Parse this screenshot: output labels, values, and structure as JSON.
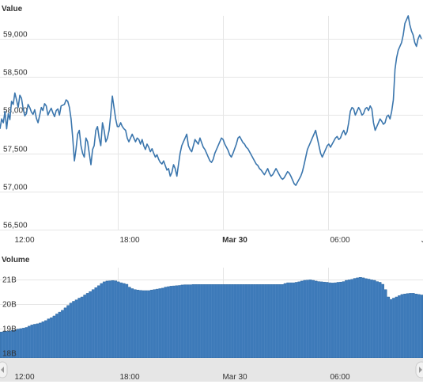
{
  "colors": {
    "line": "#3b76ad",
    "bar": "#3d7ab9",
    "bar_edge": "#2f679e",
    "grid": "#e6e6e6",
    "navigator": "#e6e6e6"
  },
  "icons": {
    "navigator_left": "chevron-left-icon",
    "navigator_right": "chevron-right-icon"
  },
  "chart_data": [
    {
      "type": "line",
      "ylabel": "Value",
      "ylim": [
        56500,
        59300
      ],
      "y_ticks": [
        "59,000",
        "58,500",
        "58,000",
        "57,500",
        "57,000",
        "56,500"
      ],
      "x_ticks": [
        "12:00",
        "18:00",
        "Mar 30",
        "06:00",
        "J"
      ],
      "grid": true,
      "series": [
        {
          "values": [
            57820,
            57950,
            57900,
            58050,
            57820,
            58020,
            57940,
            58180,
            58140,
            58290,
            58200,
            58100,
            58260,
            58220,
            58080,
            57990,
            58020,
            58140,
            58100,
            58040,
            58010,
            58070,
            57960,
            57900,
            58000,
            58100,
            58060,
            58150,
            58120,
            58000,
            58050,
            58090,
            58030,
            57980,
            58060,
            58080,
            58000,
            58120,
            58130,
            58140,
            58200,
            58180,
            58100,
            57950,
            57700,
            57400,
            57550,
            57750,
            57800,
            57600,
            57500,
            57450,
            57700,
            57650,
            57500,
            57350,
            57550,
            57600,
            57800,
            57850,
            57700,
            57600,
            57900,
            57800,
            57650,
            57700,
            57800,
            58000,
            58250,
            58100,
            57950,
            57850,
            57850,
            57900,
            57850,
            57820,
            57800,
            57700,
            57650,
            57700,
            57750,
            57700,
            57650,
            57700,
            57680,
            57620,
            57680,
            57600,
            57550,
            57620,
            57580,
            57520,
            57560,
            57500,
            57450,
            57480,
            57420,
            57380,
            57360,
            57400,
            57340,
            57280,
            57300,
            57200,
            57250,
            57350,
            57300,
            57200,
            57350,
            57500,
            57600,
            57650,
            57700,
            57750,
            57600,
            57550,
            57520,
            57600,
            57680,
            57650,
            57620,
            57700,
            57640,
            57580,
            57550,
            57500,
            57450,
            57400,
            57380,
            57420,
            57500,
            57550,
            57600,
            57650,
            57700,
            57680,
            57620,
            57580,
            57540,
            57480,
            57450,
            57500,
            57560,
            57620,
            57700,
            57720,
            57680,
            57640,
            57620,
            57580,
            57560,
            57520,
            57480,
            57440,
            57400,
            57360,
            57340,
            57300,
            57280,
            57250,
            57220,
            57260,
            57300,
            57240,
            57200,
            57220,
            57260,
            57300,
            57260,
            57220,
            57180,
            57160,
            57180,
            57220,
            57260,
            57240,
            57200,
            57150,
            57100,
            57080,
            57120,
            57160,
            57200,
            57260,
            57350,
            57450,
            57550,
            57600,
            57650,
            57700,
            57750,
            57800,
            57700,
            57600,
            57500,
            57450,
            57500,
            57550,
            57600,
            57620,
            57580,
            57620,
            57660,
            57700,
            57720,
            57680,
            57700,
            57760,
            57800,
            57740,
            57780,
            57900,
            58050,
            58100,
            58080,
            58000,
            58050,
            58100,
            58060,
            58000,
            58020,
            58080,
            58100,
            58060,
            58120,
            58080,
            57900,
            57800,
            57850,
            57900,
            57950,
            57920,
            57880,
            57900,
            57980,
            58000,
            57950,
            58050,
            58200,
            58600,
            58750,
            58850,
            58900,
            58950,
            59050,
            59200,
            59250,
            59300,
            59180,
            59100,
            59050,
            58950,
            58900,
            59000,
            59050,
            59000
          ]
        }
      ]
    },
    {
      "type": "area",
      "ylabel": "Volume",
      "ylim": [
        17800000000,
        21500000000
      ],
      "y_ticks": [
        "21B",
        "20B",
        "19B",
        "18B"
      ],
      "x_ticks": [
        "12:00",
        "18:00",
        "Mar 30",
        "06:00"
      ],
      "grid": true,
      "series": [
        {
          "values": [
            18860000000,
            18880000000,
            18890000000,
            18900000000,
            18930000000,
            18950000000,
            18980000000,
            19000000000,
            19020000000,
            19050000000,
            19100000000,
            19150000000,
            19180000000,
            19200000000,
            19230000000,
            19280000000,
            19330000000,
            19400000000,
            19450000000,
            19520000000,
            19600000000,
            19680000000,
            19750000000,
            19850000000,
            19950000000,
            20050000000,
            20120000000,
            20180000000,
            20250000000,
            20300000000,
            20380000000,
            20450000000,
            20520000000,
            20600000000,
            20680000000,
            20760000000,
            20850000000,
            20920000000,
            20950000000,
            20960000000,
            20970000000,
            20960000000,
            20920000000,
            20880000000,
            20850000000,
            20820000000,
            20700000000,
            20640000000,
            20600000000,
            20580000000,
            20570000000,
            20560000000,
            20560000000,
            20560000000,
            20580000000,
            20600000000,
            20620000000,
            20640000000,
            20660000000,
            20700000000,
            20720000000,
            20740000000,
            20750000000,
            20760000000,
            20770000000,
            20790000000,
            20800000000,
            20800000000,
            20800000000,
            20810000000,
            20810000000,
            20810000000,
            20810000000,
            20810000000,
            20810000000,
            20810000000,
            20810000000,
            20810000000,
            20810000000,
            20810000000,
            20810000000,
            20810000000,
            20810000000,
            20810000000,
            20810000000,
            20810000000,
            20810000000,
            20810000000,
            20810000000,
            20810000000,
            20810000000,
            20810000000,
            20810000000,
            20810000000,
            20810000000,
            20810000000,
            20810000000,
            20810000000,
            20810000000,
            20810000000,
            20810000000,
            20810000000,
            20850000000,
            20880000000,
            20880000000,
            20880000000,
            20900000000,
            20920000000,
            20950000000,
            20980000000,
            20990000000,
            21000000000,
            20980000000,
            20950000000,
            20930000000,
            20920000000,
            20910000000,
            20900000000,
            20880000000,
            20870000000,
            20880000000,
            20900000000,
            20910000000,
            20930000000,
            20980000000,
            21000000000,
            21020000000,
            21060000000,
            21080000000,
            21100000000,
            21080000000,
            21050000000,
            21030000000,
            21000000000,
            20980000000,
            20930000000,
            20900000000,
            20820000000,
            20600000000,
            20300000000,
            20200000000,
            20250000000,
            20300000000,
            20350000000,
            20400000000,
            20420000000,
            20440000000,
            20450000000,
            20450000000,
            20420000000,
            20400000000,
            20380000000
          ]
        }
      ]
    }
  ],
  "navigator": {
    "x_ticks": [
      "12:00",
      "18:00",
      "Mar 30",
      "06:00"
    ]
  }
}
